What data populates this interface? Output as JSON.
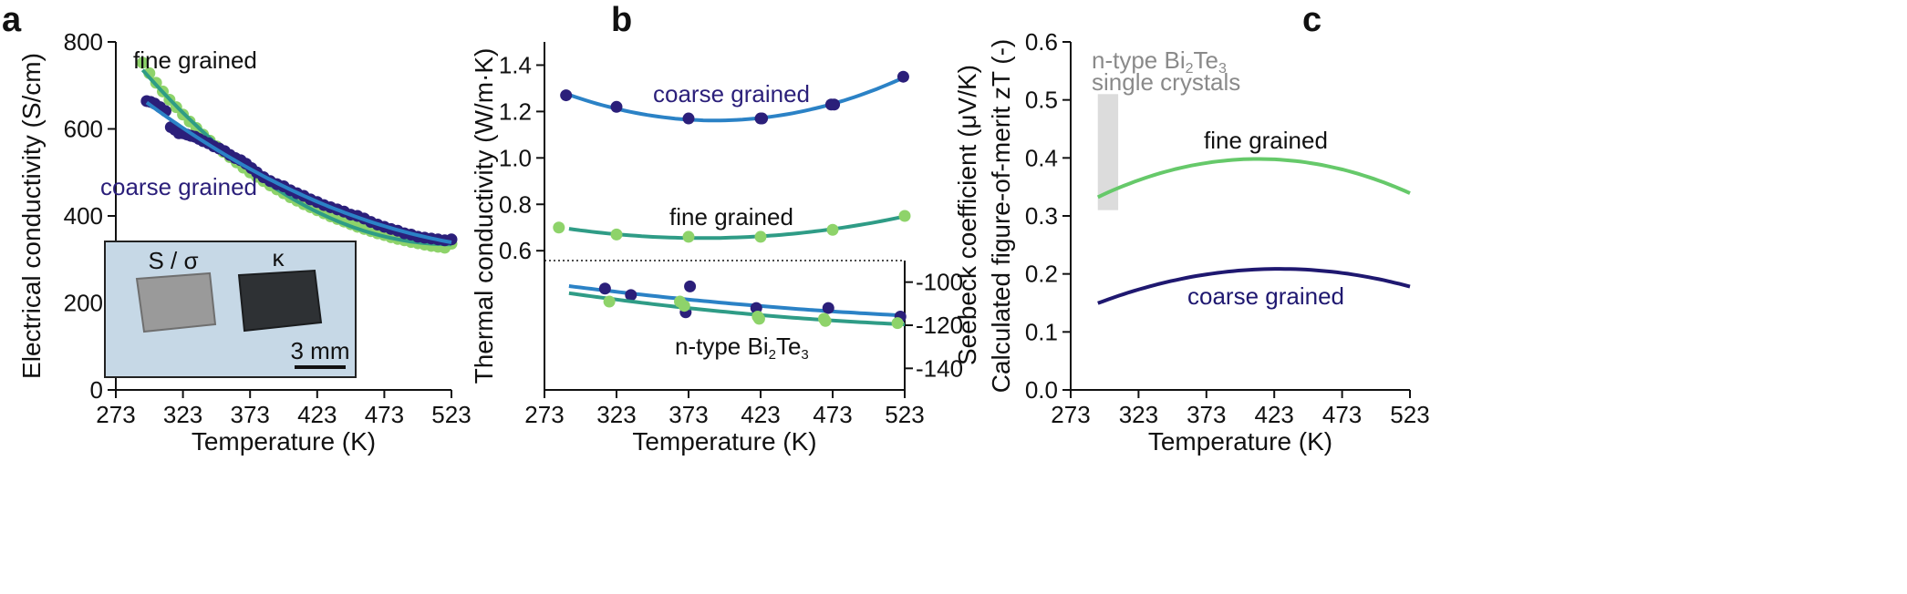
{
  "panels": {
    "a": "a",
    "b": "b",
    "c": "c"
  },
  "chart_data": [
    {
      "id": "a",
      "type": "scatter",
      "xlabel": "Temperature (K)",
      "ylabel": "Electrical conductivity (S/cm)",
      "xlim": [
        273,
        523
      ],
      "ylim": [
        0,
        800
      ],
      "xticks": [
        273,
        323,
        373,
        423,
        473,
        523
      ],
      "yticks": [
        0,
        200,
        400,
        600,
        800
      ],
      "series": [
        {
          "name": "fine grained",
          "color": "#8ed36a",
          "fit_color": "#2f9c86",
          "x": [
            293,
            298,
            303,
            308,
            313,
            318,
            323,
            328,
            333,
            338,
            343,
            348,
            353,
            358,
            363,
            368,
            373,
            378,
            383,
            388,
            393,
            398,
            403,
            408,
            413,
            418,
            423,
            428,
            433,
            438,
            443,
            448,
            453,
            458,
            463,
            468,
            473,
            478,
            483,
            488,
            493,
            498,
            503,
            508,
            513,
            518,
            523
          ],
          "y": [
            752,
            728,
            706,
            686,
            667,
            650,
            633,
            617,
            602,
            587,
            573,
            560,
            547,
            535,
            523,
            511,
            500,
            490,
            480,
            470,
            461,
            452,
            443,
            435,
            427,
            420,
            413,
            406,
            399,
            393,
            387,
            381,
            375,
            370,
            365,
            360,
            356,
            351,
            347,
            344,
            340,
            337,
            334,
            331,
            329,
            327,
            336
          ]
        },
        {
          "name": "coarse grained",
          "color": "#2b1f7a",
          "fit_color": "#2b82c6",
          "x": [
            296,
            299,
            302,
            306,
            310,
            314,
            317,
            320,
            323,
            326,
            329,
            332,
            335,
            338,
            342,
            346,
            350,
            354,
            358,
            362,
            366,
            370,
            374,
            378,
            383,
            388,
            393,
            398,
            403,
            408,
            413,
            418,
            423,
            428,
            433,
            438,
            443,
            448,
            453,
            458,
            463,
            468,
            473,
            478,
            483,
            488,
            493,
            498,
            503,
            508,
            513,
            518,
            523
          ],
          "y": [
            664,
            662,
            658,
            650,
            641,
            604,
            598,
            590,
            590,
            587,
            584,
            582,
            577,
            572,
            567,
            560,
            555,
            549,
            540,
            533,
            528,
            520,
            510,
            500,
            489,
            480,
            473,
            468,
            459,
            452,
            446,
            438,
            432,
            425,
            420,
            415,
            410,
            403,
            400,
            394,
            386,
            380,
            375,
            370,
            366,
            360,
            357,
            352,
            350,
            348,
            346,
            344,
            346
          ]
        }
      ],
      "annotations": [
        "fine grained",
        "coarse grained"
      ],
      "inset": {
        "label_left": "S / σ",
        "label_right": "κ",
        "scale_bar": "3 mm"
      }
    },
    {
      "id": "b",
      "type": "scatter",
      "xlabel": "Temperature (K)",
      "ylabel": "Thermal conductivity (W/m·K)",
      "ylabel_right": "Seebeck coefficient (μV/K)",
      "xlim": [
        273,
        523
      ],
      "ylim": [
        0.0,
        1.5
      ],
      "ylim_right": [
        -150,
        -90
      ],
      "xticks": [
        273,
        323,
        373,
        423,
        473,
        523
      ],
      "yticks": [
        0.6,
        0.8,
        1.0,
        1.2,
        1.4
      ],
      "yticks_right": [
        -100,
        -120,
        -140
      ],
      "series": [
        {
          "name": "coarse grained",
          "axis": "thermal",
          "color": "#2b1f7a",
          "fit_color": "#2b82c6",
          "x": [
            288,
            323,
            373,
            423,
            424,
            472,
            474,
            522
          ],
          "y": [
            1.27,
            1.22,
            1.17,
            1.17,
            1.17,
            1.23,
            1.23,
            1.35
          ]
        },
        {
          "name": "fine grained",
          "axis": "thermal",
          "color": "#8ed36a",
          "fit_color": "#2f9c86",
          "x": [
            283,
            323,
            373,
            423,
            473,
            523
          ],
          "y": [
            0.7,
            0.67,
            0.66,
            0.66,
            0.69,
            0.75
          ]
        },
        {
          "name": "n-type Bi2Te3 coarse",
          "axis": "seebeck",
          "color": "#2b1f7a",
          "fit_color": "#2b82c6",
          "x": [
            315,
            333,
            371,
            374,
            420,
            470,
            520
          ],
          "y": [
            -103,
            -106,
            -114,
            -102,
            -112,
            -112,
            -116
          ]
        },
        {
          "name": "n-type Bi2Te3 fine",
          "axis": "seebeck",
          "color": "#8ed36a",
          "fit_color": "#2f9c86",
          "x": [
            318,
            367,
            370,
            421,
            422,
            467,
            468,
            518
          ],
          "y": [
            -109,
            -109,
            -111,
            -116,
            -117,
            -117,
            -118,
            -119
          ]
        }
      ],
      "annotations": {
        "coarse": "coarse grained",
        "fine": "fine grained",
        "material_prefix": "n-type Bi",
        "material_sub1": "2",
        "material_mid": "Te",
        "material_sub2": "3"
      }
    },
    {
      "id": "c",
      "type": "line",
      "xlabel": "Temperature (K)",
      "ylabel": "Calculated figure-of-merit zT (-)",
      "xlim": [
        273,
        523
      ],
      "ylim": [
        0.0,
        0.6
      ],
      "xticks": [
        273,
        323,
        373,
        423,
        473,
        523
      ],
      "yticks": [
        0.0,
        0.1,
        0.2,
        0.3,
        0.4,
        0.5,
        0.6
      ],
      "series": [
        {
          "name": "fine grained",
          "color": "#66c96a",
          "x": [
            293,
            323,
            353,
            373,
            398,
            423,
            448,
            473,
            498,
            523
          ],
          "y": [
            0.33,
            0.36,
            0.385,
            0.396,
            0.4,
            0.397,
            0.388,
            0.375,
            0.36,
            0.345
          ]
        },
        {
          "name": "coarse grained",
          "color": "#1f1870",
          "x": [
            293,
            323,
            353,
            373,
            398,
            423,
            448,
            473,
            498,
            523
          ],
          "y": [
            0.15,
            0.172,
            0.19,
            0.2,
            0.207,
            0.21,
            0.207,
            0.2,
            0.19,
            0.18
          ]
        }
      ],
      "reference_band": {
        "x_range": [
          293,
          308
        ],
        "y_range": [
          0.31,
          0.51
        ],
        "color": "#dcdcdc",
        "label_prefix": "n-type Bi",
        "label_sub1": "2",
        "label_mid": "Te",
        "label_sub2": "3",
        "label_line2": "single crystals"
      }
    }
  ]
}
